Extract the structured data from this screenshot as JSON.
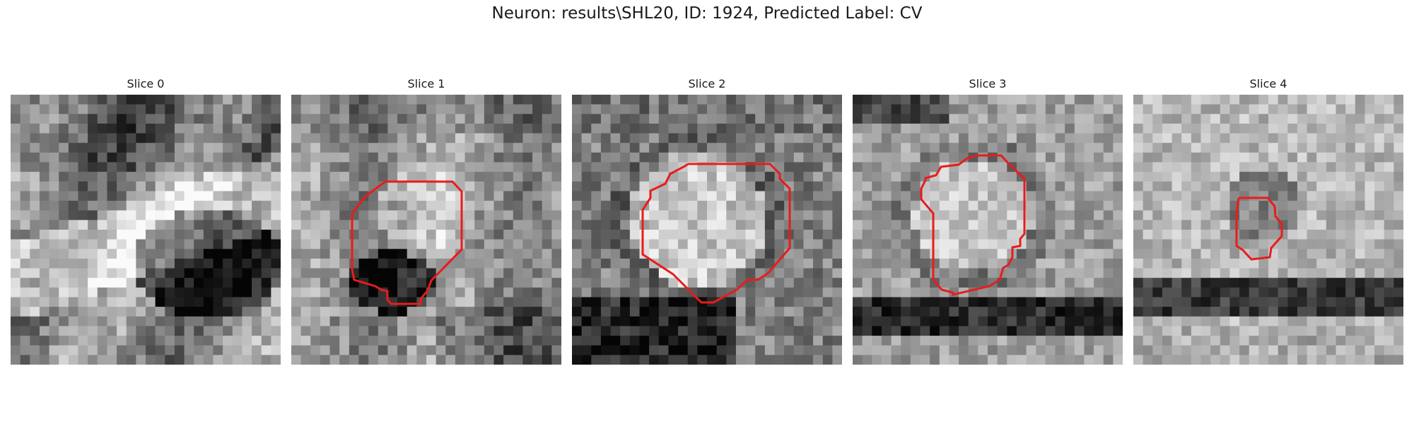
{
  "figure": {
    "title": "Neuron: results\\SHL20, ID: 1924, Predicted Label: CV"
  },
  "contour_color": "#e81c1c",
  "slices": [
    {
      "label": "Slice 0",
      "has_contour": false
    },
    {
      "label": "Slice 1",
      "has_contour": true
    },
    {
      "label": "Slice 2",
      "has_contour": true
    },
    {
      "label": "Slice 3",
      "has_contour": true
    },
    {
      "label": "Slice 4",
      "has_contour": true
    }
  ]
}
